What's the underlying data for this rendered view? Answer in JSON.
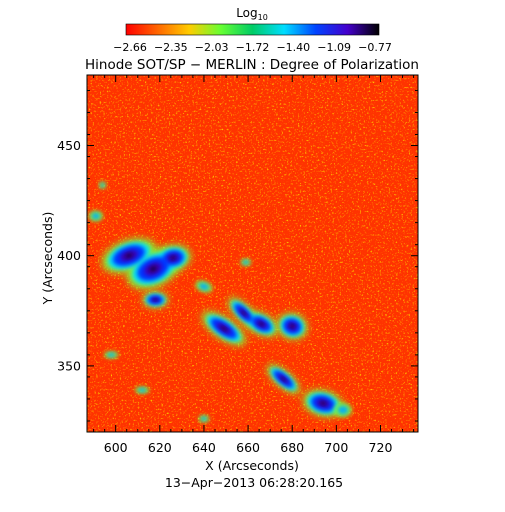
{
  "chart_data": {
    "type": "heatmap",
    "title": "Hinode SOT/SP − MERLIN : Degree of Polarization",
    "xlabel": "X (Arcseconds)",
    "ylabel": "Y (Arcseconds)",
    "timestamp": "13−Apr−2013 06:28:20.165",
    "xlim": [
      587,
      737
    ],
    "ylim": [
      320,
      482
    ],
    "x_ticks": [
      {
        "value": 600,
        "label": "600"
      },
      {
        "value": 620,
        "label": "620"
      },
      {
        "value": 640,
        "label": "640"
      },
      {
        "value": 660,
        "label": "660"
      },
      {
        "value": 680,
        "label": "680"
      },
      {
        "value": 700,
        "label": "700"
      },
      {
        "value": 720,
        "label": "720"
      }
    ],
    "y_ticks": [
      {
        "value": 350,
        "label": "350"
      },
      {
        "value": 400,
        "label": "400"
      },
      {
        "value": 450,
        "label": "450"
      }
    ],
    "colorbar": {
      "label_base": "Log",
      "label_sub": "10",
      "range": [
        -2.66,
        -0.77
      ],
      "tick_labels": [
        "−2.66",
        "−2.35",
        "−2.03",
        "−1.72",
        "−1.40",
        "−1.09",
        "−0.77"
      ],
      "colors": [
        "#ff0000",
        "#ff6600",
        "#ffcc00",
        "#66ff33",
        "#00cc66",
        "#00ddff",
        "#0044ff",
        "#4400cc",
        "#000000"
      ]
    },
    "background_color": "#ff3300",
    "features": [
      {
        "kind": "strong",
        "x": 606,
        "y": 400,
        "rx": 11,
        "ry": 6,
        "rot": -20
      },
      {
        "kind": "strong",
        "x": 617,
        "y": 394,
        "rx": 11,
        "ry": 7,
        "rot": -25
      },
      {
        "kind": "strong",
        "x": 626,
        "y": 399,
        "rx": 7,
        "ry": 5,
        "rot": -10
      },
      {
        "kind": "strong",
        "x": 618,
        "y": 380,
        "rx": 5,
        "ry": 3,
        "rot": 0
      },
      {
        "kind": "strong",
        "x": 649,
        "y": 367,
        "rx": 10,
        "ry": 4,
        "rot": 35
      },
      {
        "kind": "strong",
        "x": 658,
        "y": 374,
        "rx": 8,
        "ry": 3,
        "rot": 45
      },
      {
        "kind": "strong",
        "x": 666,
        "y": 369,
        "rx": 7,
        "ry": 4,
        "rot": 30
      },
      {
        "kind": "strong",
        "x": 680,
        "y": 368,
        "rx": 6,
        "ry": 5,
        "rot": 20
      },
      {
        "kind": "strong",
        "x": 676,
        "y": 344,
        "rx": 8,
        "ry": 3,
        "rot": 40
      },
      {
        "kind": "strong",
        "x": 694,
        "y": 333,
        "rx": 8,
        "ry": 5,
        "rot": 15
      },
      {
        "kind": "moderate",
        "x": 591,
        "y": 418,
        "rx": 4,
        "ry": 3,
        "rot": 0
      },
      {
        "kind": "moderate",
        "x": 594,
        "y": 432,
        "rx": 2,
        "ry": 2,
        "rot": 0
      },
      {
        "kind": "moderate",
        "x": 598,
        "y": 355,
        "rx": 4,
        "ry": 2,
        "rot": 0
      },
      {
        "kind": "moderate",
        "x": 640,
        "y": 326,
        "rx": 3,
        "ry": 2,
        "rot": 0
      },
      {
        "kind": "moderate",
        "x": 612,
        "y": 339,
        "rx": 4,
        "ry": 2,
        "rot": 0
      },
      {
        "kind": "moderate",
        "x": 659,
        "y": 397,
        "rx": 3,
        "ry": 2,
        "rot": 0
      },
      {
        "kind": "moderate",
        "x": 640,
        "y": 386,
        "rx": 5,
        "ry": 3,
        "rot": 20
      },
      {
        "kind": "moderate",
        "x": 703,
        "y": 330,
        "rx": 5,
        "ry": 4,
        "rot": 0
      }
    ]
  }
}
